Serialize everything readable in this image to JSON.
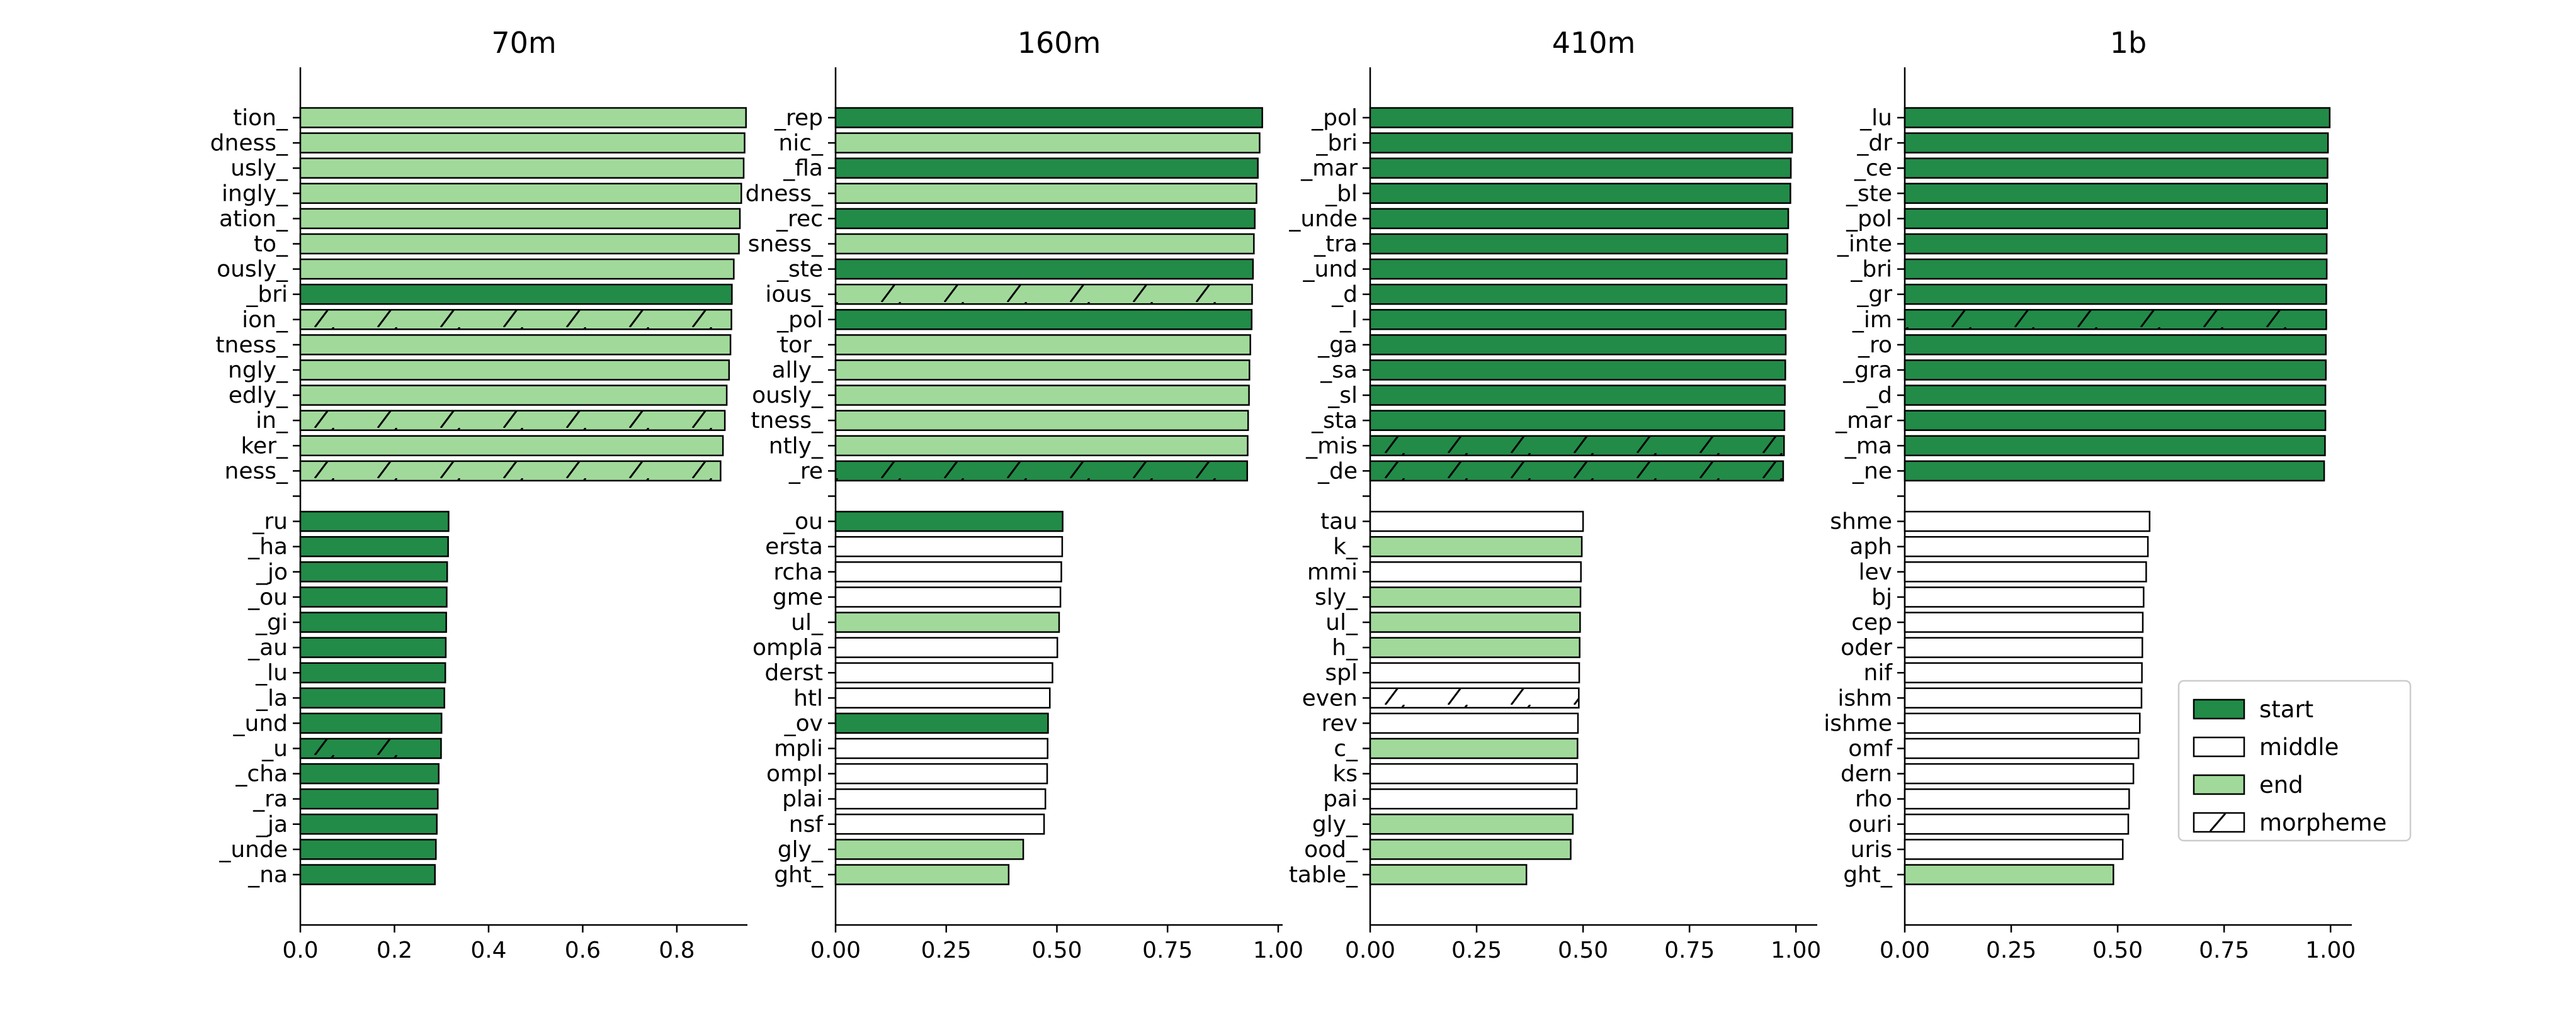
{
  "colors": {
    "start": "#228b48",
    "middle": "#ffffff",
    "end": "#a1d99b",
    "edge": "#000000"
  },
  "chart_data": [
    {
      "type": "bar",
      "orientation": "horizontal",
      "title": "70m",
      "xlim": [
        0,
        0.95
      ],
      "xticks": [
        "0.0",
        "0.2",
        "0.4",
        "0.6",
        "0.8"
      ],
      "xtick_values": [
        0,
        0.2,
        0.4,
        0.6,
        0.8
      ],
      "top": [
        {
          "label": "tion_",
          "value": 0.947,
          "cat": "end",
          "morpheme": false
        },
        {
          "label": "dness_",
          "value": 0.944,
          "cat": "end",
          "morpheme": false
        },
        {
          "label": "usly_",
          "value": 0.942,
          "cat": "end",
          "morpheme": false
        },
        {
          "label": "ingly_",
          "value": 0.937,
          "cat": "end",
          "morpheme": false
        },
        {
          "label": "ation_",
          "value": 0.934,
          "cat": "end",
          "morpheme": false
        },
        {
          "label": "to_",
          "value": 0.932,
          "cat": "end",
          "morpheme": false
        },
        {
          "label": "ously_",
          "value": 0.921,
          "cat": "end",
          "morpheme": false
        },
        {
          "label": "_bri",
          "value": 0.917,
          "cat": "start",
          "morpheme": false
        },
        {
          "label": "ion_",
          "value": 0.916,
          "cat": "end",
          "morpheme": true
        },
        {
          "label": "tness_",
          "value": 0.914,
          "cat": "end",
          "morpheme": false
        },
        {
          "label": "ngly_",
          "value": 0.911,
          "cat": "end",
          "morpheme": false
        },
        {
          "label": "edly_",
          "value": 0.906,
          "cat": "end",
          "morpheme": false
        },
        {
          "label": "in_",
          "value": 0.902,
          "cat": "end",
          "morpheme": true
        },
        {
          "label": "ker_",
          "value": 0.898,
          "cat": "end",
          "morpheme": false
        },
        {
          "label": "ness_",
          "value": 0.893,
          "cat": "end",
          "morpheme": true
        }
      ],
      "bottom": [
        {
          "label": "_ru",
          "value": 0.315,
          "cat": "start",
          "morpheme": false
        },
        {
          "label": "_ha",
          "value": 0.314,
          "cat": "start",
          "morpheme": false
        },
        {
          "label": "_jo",
          "value": 0.312,
          "cat": "start",
          "morpheme": false
        },
        {
          "label": "_ou",
          "value": 0.311,
          "cat": "start",
          "morpheme": false
        },
        {
          "label": "_gi",
          "value": 0.31,
          "cat": "start",
          "morpheme": false
        },
        {
          "label": "_au",
          "value": 0.309,
          "cat": "start",
          "morpheme": false
        },
        {
          "label": "_lu",
          "value": 0.308,
          "cat": "start",
          "morpheme": false
        },
        {
          "label": "_la",
          "value": 0.306,
          "cat": "start",
          "morpheme": false
        },
        {
          "label": "_und",
          "value": 0.3,
          "cat": "start",
          "morpheme": false
        },
        {
          "label": "_u",
          "value": 0.299,
          "cat": "start",
          "morpheme": true
        },
        {
          "label": "_cha",
          "value": 0.294,
          "cat": "start",
          "morpheme": false
        },
        {
          "label": "_ra",
          "value": 0.292,
          "cat": "start",
          "morpheme": false
        },
        {
          "label": "_ja",
          "value": 0.29,
          "cat": "start",
          "morpheme": false
        },
        {
          "label": "_unde",
          "value": 0.288,
          "cat": "start",
          "morpheme": false
        },
        {
          "label": "_na",
          "value": 0.286,
          "cat": "start",
          "morpheme": false
        }
      ]
    },
    {
      "type": "bar",
      "orientation": "horizontal",
      "title": "160m",
      "xlim": [
        0,
        1.01
      ],
      "xticks": [
        "0.00",
        "0.25",
        "0.50",
        "0.75",
        "1.00"
      ],
      "xtick_values": [
        0,
        0.25,
        0.5,
        0.75,
        1.0
      ],
      "top": [
        {
          "label": "_rep",
          "value": 0.964,
          "cat": "start",
          "morpheme": false
        },
        {
          "label": "nic_",
          "value": 0.958,
          "cat": "end",
          "morpheme": false
        },
        {
          "label": "_fla",
          "value": 0.954,
          "cat": "start",
          "morpheme": false
        },
        {
          "label": "dness_",
          "value": 0.951,
          "cat": "end",
          "morpheme": false
        },
        {
          "label": "_rec",
          "value": 0.947,
          "cat": "start",
          "morpheme": false
        },
        {
          "label": "sness_",
          "value": 0.945,
          "cat": "end",
          "morpheme": false
        },
        {
          "label": "_ste",
          "value": 0.943,
          "cat": "start",
          "morpheme": false
        },
        {
          "label": "ious_",
          "value": 0.941,
          "cat": "end",
          "morpheme": true
        },
        {
          "label": "_pol",
          "value": 0.94,
          "cat": "start",
          "morpheme": false
        },
        {
          "label": "tor_",
          "value": 0.937,
          "cat": "end",
          "morpheme": false
        },
        {
          "label": "ally_",
          "value": 0.935,
          "cat": "end",
          "morpheme": false
        },
        {
          "label": "ously_",
          "value": 0.934,
          "cat": "end",
          "morpheme": false
        },
        {
          "label": "tness_",
          "value": 0.932,
          "cat": "end",
          "morpheme": false
        },
        {
          "label": "ntly_",
          "value": 0.931,
          "cat": "end",
          "morpheme": false
        },
        {
          "label": "_re",
          "value": 0.93,
          "cat": "start",
          "morpheme": true
        }
      ],
      "bottom": [
        {
          "label": "_ou",
          "value": 0.513,
          "cat": "start",
          "morpheme": false
        },
        {
          "label": "ersta",
          "value": 0.512,
          "cat": "middle",
          "morpheme": false
        },
        {
          "label": "rcha",
          "value": 0.51,
          "cat": "middle",
          "morpheme": false
        },
        {
          "label": "gme",
          "value": 0.508,
          "cat": "middle",
          "morpheme": false
        },
        {
          "label": "ul_",
          "value": 0.505,
          "cat": "end",
          "morpheme": false
        },
        {
          "label": "ompla",
          "value": 0.501,
          "cat": "middle",
          "morpheme": false
        },
        {
          "label": "derst",
          "value": 0.49,
          "cat": "middle",
          "morpheme": false
        },
        {
          "label": "htl",
          "value": 0.484,
          "cat": "middle",
          "morpheme": false
        },
        {
          "label": "_ov",
          "value": 0.48,
          "cat": "start",
          "morpheme": false
        },
        {
          "label": "mpli",
          "value": 0.479,
          "cat": "middle",
          "morpheme": false
        },
        {
          "label": "ompl",
          "value": 0.478,
          "cat": "middle",
          "morpheme": false
        },
        {
          "label": "plai",
          "value": 0.474,
          "cat": "middle",
          "morpheme": false
        },
        {
          "label": "nsf",
          "value": 0.471,
          "cat": "middle",
          "morpheme": false
        },
        {
          "label": "gly_",
          "value": 0.424,
          "cat": "end",
          "morpheme": false
        },
        {
          "label": "ght_",
          "value": 0.391,
          "cat": "end",
          "morpheme": false
        }
      ]
    },
    {
      "type": "bar",
      "orientation": "horizontal",
      "title": "410m",
      "xlim": [
        0,
        1.05
      ],
      "xticks": [
        "0.00",
        "0.25",
        "0.50",
        "0.75",
        "1.00"
      ],
      "xtick_values": [
        0,
        0.25,
        0.5,
        0.75,
        1.0
      ],
      "top": [
        {
          "label": "_pol",
          "value": 0.992,
          "cat": "start",
          "morpheme": false
        },
        {
          "label": "_bri",
          "value": 0.991,
          "cat": "start",
          "morpheme": false
        },
        {
          "label": "_mar",
          "value": 0.988,
          "cat": "start",
          "morpheme": false
        },
        {
          "label": "_bl",
          "value": 0.987,
          "cat": "start",
          "morpheme": false
        },
        {
          "label": "_unde",
          "value": 0.982,
          "cat": "start",
          "morpheme": false
        },
        {
          "label": "_tra",
          "value": 0.98,
          "cat": "start",
          "morpheme": false
        },
        {
          "label": "_und",
          "value": 0.978,
          "cat": "start",
          "morpheme": false
        },
        {
          "label": "_d",
          "value": 0.978,
          "cat": "start",
          "morpheme": false
        },
        {
          "label": "_l",
          "value": 0.976,
          "cat": "start",
          "morpheme": false
        },
        {
          "label": "_ga",
          "value": 0.976,
          "cat": "start",
          "morpheme": false
        },
        {
          "label": "_sa",
          "value": 0.975,
          "cat": "start",
          "morpheme": false
        },
        {
          "label": "_sl",
          "value": 0.974,
          "cat": "start",
          "morpheme": false
        },
        {
          "label": "_sta",
          "value": 0.973,
          "cat": "start",
          "morpheme": false
        },
        {
          "label": "_mis",
          "value": 0.972,
          "cat": "start",
          "morpheme": true
        },
        {
          "label": "_de",
          "value": 0.97,
          "cat": "start",
          "morpheme": true
        }
      ],
      "bottom": [
        {
          "label": "tau",
          "value": 0.5,
          "cat": "middle",
          "morpheme": false
        },
        {
          "label": "k_",
          "value": 0.497,
          "cat": "end",
          "morpheme": false
        },
        {
          "label": "mmi",
          "value": 0.495,
          "cat": "middle",
          "morpheme": false
        },
        {
          "label": "sly_",
          "value": 0.494,
          "cat": "end",
          "morpheme": false
        },
        {
          "label": "ul_",
          "value": 0.493,
          "cat": "end",
          "morpheme": false
        },
        {
          "label": "h_",
          "value": 0.492,
          "cat": "end",
          "morpheme": false
        },
        {
          "label": "spl",
          "value": 0.491,
          "cat": "middle",
          "morpheme": false
        },
        {
          "label": "even",
          "value": 0.49,
          "cat": "middle",
          "morpheme": true
        },
        {
          "label": "rev",
          "value": 0.488,
          "cat": "middle",
          "morpheme": false
        },
        {
          "label": "c_",
          "value": 0.487,
          "cat": "end",
          "morpheme": false
        },
        {
          "label": "ks",
          "value": 0.486,
          "cat": "middle",
          "morpheme": false
        },
        {
          "label": "pai",
          "value": 0.485,
          "cat": "middle",
          "morpheme": false
        },
        {
          "label": "gly_",
          "value": 0.476,
          "cat": "end",
          "morpheme": false
        },
        {
          "label": "ood_",
          "value": 0.471,
          "cat": "end",
          "morpheme": false
        },
        {
          "label": "table_",
          "value": 0.367,
          "cat": "end",
          "morpheme": false
        }
      ]
    },
    {
      "type": "bar",
      "orientation": "horizontal",
      "title": "1b",
      "xlim": [
        0,
        1.05
      ],
      "xticks": [
        "0.00",
        "0.25",
        "0.50",
        "0.75",
        "1.00"
      ],
      "xtick_values": [
        0,
        0.25,
        0.5,
        0.75,
        1.0
      ],
      "top": [
        {
          "label": "_lu",
          "value": 0.998,
          "cat": "start",
          "morpheme": false
        },
        {
          "label": "_dr",
          "value": 0.994,
          "cat": "start",
          "morpheme": false
        },
        {
          "label": "_ce",
          "value": 0.993,
          "cat": "start",
          "morpheme": false
        },
        {
          "label": "_ste",
          "value": 0.992,
          "cat": "start",
          "morpheme": false
        },
        {
          "label": "_pol",
          "value": 0.992,
          "cat": "start",
          "morpheme": false
        },
        {
          "label": "_inte",
          "value": 0.991,
          "cat": "start",
          "morpheme": false
        },
        {
          "label": "_bri",
          "value": 0.991,
          "cat": "start",
          "morpheme": false
        },
        {
          "label": "_gr",
          "value": 0.99,
          "cat": "start",
          "morpheme": false
        },
        {
          "label": "_im",
          "value": 0.99,
          "cat": "start",
          "morpheme": true
        },
        {
          "label": "_ro",
          "value": 0.989,
          "cat": "start",
          "morpheme": false
        },
        {
          "label": "_gra",
          "value": 0.989,
          "cat": "start",
          "morpheme": false
        },
        {
          "label": "_d",
          "value": 0.988,
          "cat": "start",
          "morpheme": false
        },
        {
          "label": "_mar",
          "value": 0.988,
          "cat": "start",
          "morpheme": false
        },
        {
          "label": "_ma",
          "value": 0.987,
          "cat": "start",
          "morpheme": false
        },
        {
          "label": "_ne",
          "value": 0.985,
          "cat": "start",
          "morpheme": false
        }
      ],
      "bottom": [
        {
          "label": "shme",
          "value": 0.575,
          "cat": "middle",
          "morpheme": false
        },
        {
          "label": "aph",
          "value": 0.571,
          "cat": "middle",
          "morpheme": false
        },
        {
          "label": "lev",
          "value": 0.567,
          "cat": "middle",
          "morpheme": false
        },
        {
          "label": "bj",
          "value": 0.561,
          "cat": "middle",
          "morpheme": false
        },
        {
          "label": "cep",
          "value": 0.559,
          "cat": "middle",
          "morpheme": false
        },
        {
          "label": "oder",
          "value": 0.558,
          "cat": "middle",
          "morpheme": false
        },
        {
          "label": "nif",
          "value": 0.557,
          "cat": "middle",
          "morpheme": false
        },
        {
          "label": "ishm",
          "value": 0.556,
          "cat": "middle",
          "morpheme": false
        },
        {
          "label": "ishme",
          "value": 0.552,
          "cat": "middle",
          "morpheme": false
        },
        {
          "label": "omf",
          "value": 0.549,
          "cat": "middle",
          "morpheme": false
        },
        {
          "label": "dern",
          "value": 0.537,
          "cat": "middle",
          "morpheme": false
        },
        {
          "label": "rho",
          "value": 0.527,
          "cat": "middle",
          "morpheme": false
        },
        {
          "label": "ouri",
          "value": 0.525,
          "cat": "middle",
          "morpheme": false
        },
        {
          "label": "uris",
          "value": 0.512,
          "cat": "middle",
          "morpheme": false
        },
        {
          "label": "ght_",
          "value": 0.49,
          "cat": "end",
          "morpheme": false
        }
      ]
    }
  ],
  "legend": {
    "position": "right",
    "items": [
      {
        "key": "start",
        "label": "start"
      },
      {
        "key": "middle",
        "label": "middle"
      },
      {
        "key": "end",
        "label": "end"
      },
      {
        "key": "morpheme",
        "label": "morpheme"
      }
    ]
  }
}
